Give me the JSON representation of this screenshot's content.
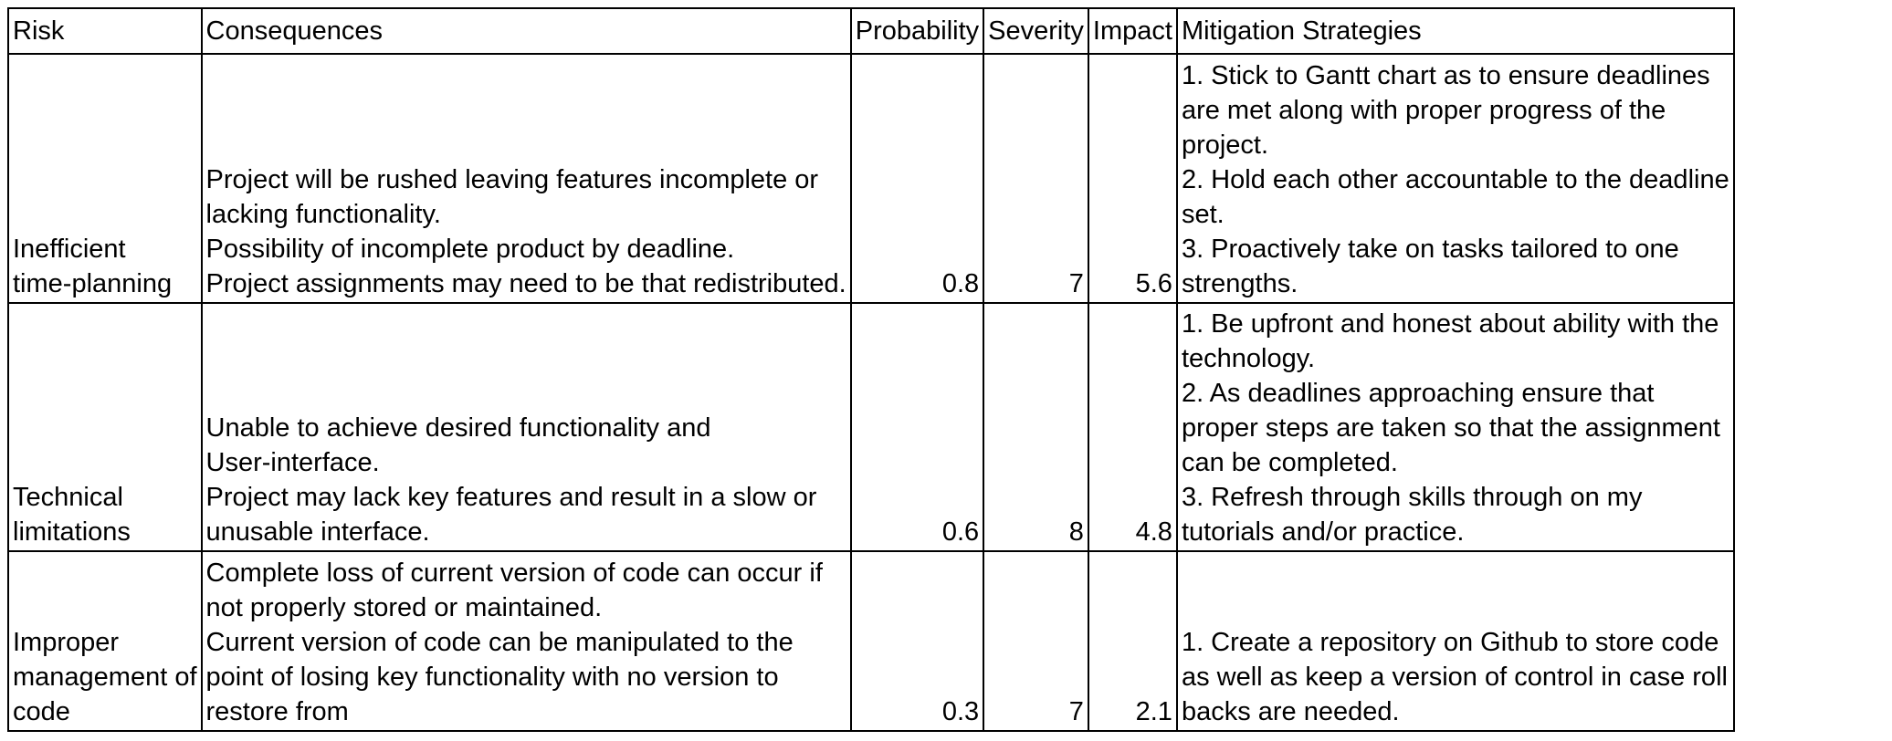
{
  "table": {
    "headers": {
      "risk": "Risk",
      "consequences": "Consequences",
      "probability": "Probability",
      "severity": "Severity",
      "impact": "Impact",
      "mitigation": "Mitigation Strategies"
    },
    "rows": [
      {
        "risk": [
          "Inefficient",
          "time-planning"
        ],
        "consequences": [
          "Project will be rushed leaving features incomplete or",
          "lacking functionality.",
          "Possibility of incomplete product by deadline.",
          "Project assignments may need to be that redistributed."
        ],
        "probability": "0.8",
        "severity": "7",
        "impact": "5.6",
        "mitigation": [
          "1. Stick to Gantt chart as to ensure deadlines",
          "are met along with proper progress of the",
          "project.",
          "2. Hold each other accountable to the deadline",
          "set.",
          "3. Proactively take on tasks tailored to one",
          "strengths."
        ]
      },
      {
        "risk": [
          "Technical",
          "limitations"
        ],
        "consequences": [
          "Unable to achieve desired functionality and",
          "User-interface.",
          "Project may lack key features and result in a slow or",
          "unusable interface."
        ],
        "probability": "0.6",
        "severity": "8",
        "impact": "4.8",
        "mitigation": [
          "1. Be upfront and honest about ability with the",
          "technology.",
          "2. As deadlines approaching ensure that",
          "proper steps are taken so that the assignment",
          "can be completed.",
          "3. Refresh through skills through on my",
          "tutorials and/or practice."
        ]
      },
      {
        "risk": [
          "Improper",
          "management of",
          "code"
        ],
        "consequences": [
          "Complete loss of current version of code can occur if",
          "not properly stored or maintained.",
          "Current version of code can be manipulated to the",
          "point of losing key functionality with no version to",
          "restore from"
        ],
        "probability": "0.3",
        "severity": "7",
        "impact": "2.1",
        "mitigation": [
          "1. Create a repository on Github to store code",
          "as well as keep a version of control in case roll",
          "backs are needed."
        ]
      }
    ]
  }
}
